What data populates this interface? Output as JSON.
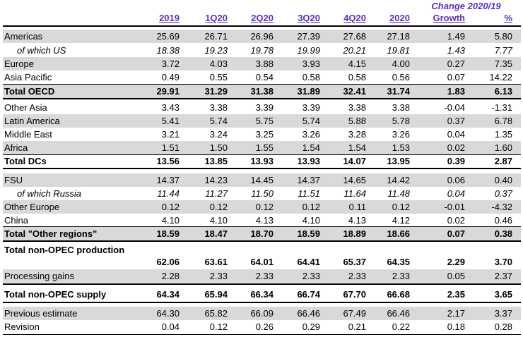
{
  "header": {
    "change_title": "Change 2020/19",
    "columns": [
      "2019",
      "1Q20",
      "2Q20",
      "3Q20",
      "4Q20",
      "2020",
      "Growth",
      "%"
    ]
  },
  "rows": [
    {
      "label": "Americas",
      "values": [
        "25.69",
        "26.71",
        "26.96",
        "27.39",
        "27.68",
        "27.18",
        "1.49",
        "5.80"
      ]
    },
    {
      "label": "of which US",
      "values": [
        "18.38",
        "19.23",
        "19.78",
        "19.99",
        "20.21",
        "19.81",
        "1.43",
        "7.77"
      ]
    },
    {
      "label": "Europe",
      "values": [
        "3.72",
        "4.03",
        "3.88",
        "3.93",
        "4.15",
        "4.00",
        "0.27",
        "7.35"
      ]
    },
    {
      "label": "Asia Pacific",
      "values": [
        "0.49",
        "0.55",
        "0.54",
        "0.58",
        "0.58",
        "0.56",
        "0.07",
        "14.22"
      ]
    },
    {
      "label": "Total OECD",
      "values": [
        "29.91",
        "31.29",
        "31.38",
        "31.89",
        "32.41",
        "31.74",
        "1.83",
        "6.13"
      ]
    },
    {
      "label": "Other Asia",
      "values": [
        "3.43",
        "3.38",
        "3.39",
        "3.39",
        "3.38",
        "3.38",
        "-0.04",
        "-1.31"
      ]
    },
    {
      "label": "Latin America",
      "values": [
        "5.41",
        "5.74",
        "5.75",
        "5.74",
        "5.88",
        "5.78",
        "0.37",
        "6.78"
      ]
    },
    {
      "label": "Middle East",
      "values": [
        "3.21",
        "3.24",
        "3.25",
        "3.26",
        "3.28",
        "3.26",
        "0.04",
        "1.35"
      ]
    },
    {
      "label": "Africa",
      "values": [
        "1.51",
        "1.50",
        "1.55",
        "1.54",
        "1.54",
        "1.53",
        "0.02",
        "1.60"
      ]
    },
    {
      "label": "Total DCs",
      "values": [
        "13.56",
        "13.85",
        "13.93",
        "13.93",
        "14.07",
        "13.95",
        "0.39",
        "2.87"
      ]
    },
    {
      "label": "FSU",
      "values": [
        "14.37",
        "14.23",
        "14.45",
        "14.37",
        "14.65",
        "14.42",
        "0.06",
        "0.40"
      ]
    },
    {
      "label": "of which Russia",
      "values": [
        "11.44",
        "11.27",
        "11.50",
        "11.51",
        "11.64",
        "11.48",
        "0.04",
        "0.37"
      ]
    },
    {
      "label": "Other Europe",
      "values": [
        "0.12",
        "0.12",
        "0.12",
        "0.12",
        "0.11",
        "0.12",
        "-0.01",
        "-4.32"
      ]
    },
    {
      "label": "China",
      "values": [
        "4.10",
        "4.10",
        "4.13",
        "4.10",
        "4.13",
        "4.12",
        "0.02",
        "0.46"
      ]
    },
    {
      "label": "Total \"Other regions\"",
      "values": [
        "18.59",
        "18.47",
        "18.70",
        "18.59",
        "18.89",
        "18.66",
        "0.07",
        "0.38"
      ]
    },
    {
      "label": "Total non-OPEC production",
      "values": [
        "62.06",
        "63.61",
        "64.01",
        "64.41",
        "65.37",
        "64.35",
        "2.29",
        "3.70"
      ]
    },
    {
      "label": "Processing gains",
      "values": [
        "2.28",
        "2.33",
        "2.33",
        "2.33",
        "2.33",
        "2.33",
        "0.05",
        "2.37"
      ]
    },
    {
      "label": "Total non-OPEC supply",
      "values": [
        "64.34",
        "65.94",
        "66.34",
        "66.74",
        "67.70",
        "66.68",
        "2.35",
        "3.65"
      ]
    },
    {
      "label": "Previous estimate",
      "values": [
        "64.30",
        "65.82",
        "66.09",
        "66.46",
        "67.49",
        "66.46",
        "2.17",
        "3.37"
      ]
    },
    {
      "label": "Revision",
      "values": [
        "0.04",
        "0.12",
        "0.26",
        "0.29",
        "0.21",
        "0.22",
        "0.18",
        "0.28"
      ]
    }
  ]
}
